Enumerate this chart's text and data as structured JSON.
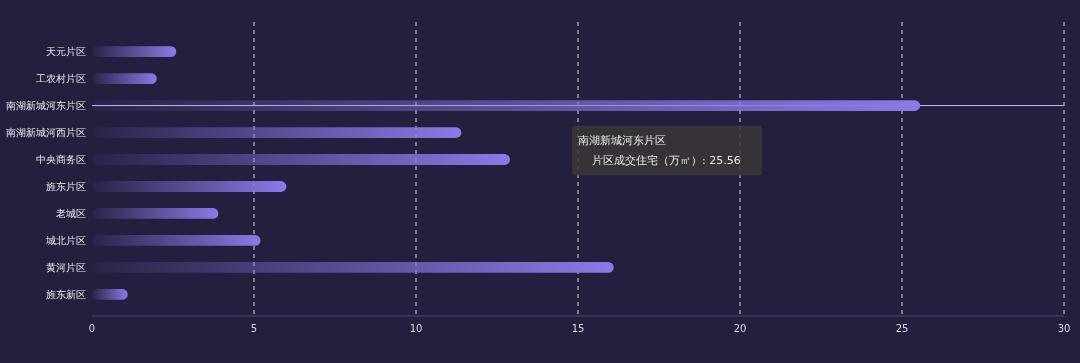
{
  "chart_data": {
    "type": "bar",
    "orientation": "horizontal",
    "categories": [
      "天元片区",
      "工农村片区",
      "南湖新城河东片区",
      "南湖新城河西片区",
      "中央商务区",
      "旌东片区",
      "老城区",
      "城北片区",
      "黄河片区",
      "旌东新区"
    ],
    "values": [
      2.6,
      2.0,
      25.56,
      11.4,
      12.9,
      6.0,
      3.9,
      5.2,
      16.1,
      1.1
    ],
    "color": "#8a7ae6",
    "xlim": [
      0,
      30
    ],
    "xticks": [
      0,
      5,
      10,
      15,
      20,
      25,
      30
    ],
    "grid": "x",
    "ref_lines": [
      {
        "axis": "y",
        "value": "南湖新城河东片区",
        "color": "#c8c0f0"
      }
    ],
    "annotations": [
      "南湖新城河东片区",
      "片区成交住宅（万㎡）: 25.56"
    ]
  }
}
